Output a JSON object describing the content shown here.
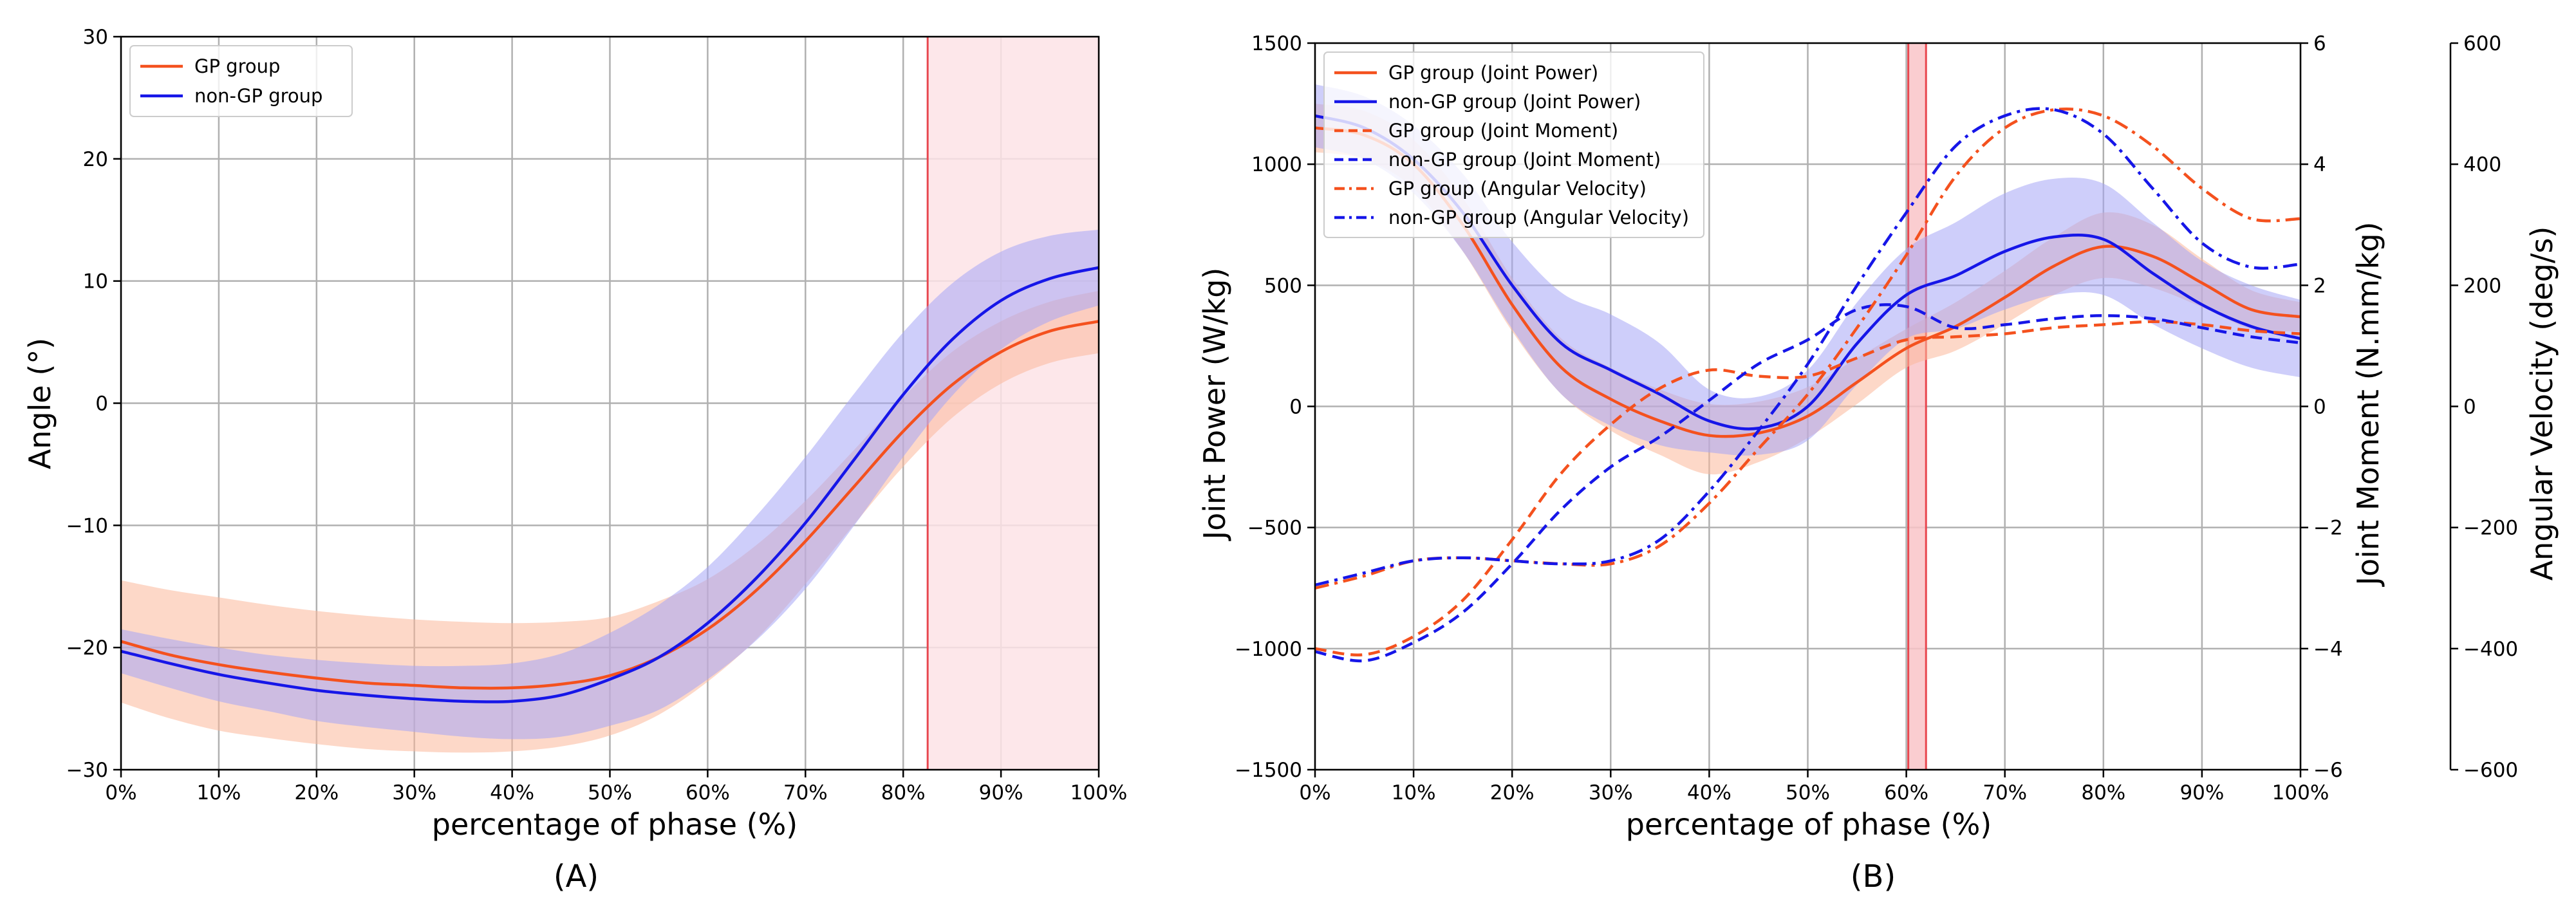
{
  "chart_data": [
    {
      "panel": "(A)",
      "type": "line",
      "xlabel": "percentage of phase (%)",
      "ylabel": "Angle (°)",
      "xlim": [
        0,
        100
      ],
      "ylim": [
        -30,
        30
      ],
      "xticks": [
        "0%",
        "10%",
        "20%",
        "30%",
        "40%",
        "50%",
        "60%",
        "70%",
        "80%",
        "90%",
        "100%"
      ],
      "yticks": [
        "−30",
        "−20",
        "−10",
        "0",
        "10",
        "20",
        "30"
      ],
      "grid": true,
      "legend_position": "top-left",
      "shaded_region": {
        "x_start": 82.5,
        "x_end": 100,
        "color": "#fde3e6",
        "edge_color": "#e8474f"
      },
      "x": [
        0,
        5,
        10,
        15,
        20,
        25,
        30,
        35,
        40,
        45,
        50,
        55,
        60,
        65,
        70,
        75,
        80,
        85,
        90,
        95,
        100
      ],
      "series": [
        {
          "name": "GP group",
          "color": "#f4511e",
          "linestyle": "solid",
          "values": [
            -19.5,
            -20.6,
            -21.4,
            -22.0,
            -22.5,
            -22.9,
            -23.1,
            -23.3,
            -23.3,
            -23.0,
            -22.3,
            -20.8,
            -18.5,
            -15.3,
            -11.3,
            -6.8,
            -2.3,
            1.5,
            4.2,
            5.9,
            6.7
          ],
          "band_upper": [
            -14.5,
            -15.3,
            -15.9,
            -16.5,
            -17.0,
            -17.4,
            -17.7,
            -17.9,
            -18.0,
            -17.9,
            -17.5,
            -16.2,
            -14.4,
            -11.6,
            -8.0,
            -3.8,
            0.5,
            4.2,
            6.7,
            8.3,
            9.2
          ],
          "band_lower": [
            -24.5,
            -25.8,
            -26.8,
            -27.4,
            -27.9,
            -28.3,
            -28.5,
            -28.6,
            -28.5,
            -28.1,
            -27.2,
            -25.5,
            -22.8,
            -19.3,
            -14.8,
            -9.9,
            -5.2,
            -1.2,
            1.6,
            3.3,
            4.1
          ],
          "band_color": "#fbb89a"
        },
        {
          "name": "non-GP group",
          "color": "#1616e8",
          "linestyle": "solid",
          "values": [
            -20.3,
            -21.3,
            -22.2,
            -22.9,
            -23.5,
            -23.9,
            -24.2,
            -24.4,
            -24.4,
            -23.9,
            -22.6,
            -20.8,
            -18.0,
            -14.3,
            -9.8,
            -4.6,
            0.7,
            5.2,
            8.4,
            10.2,
            11.1
          ],
          "band_upper": [
            -18.5,
            -19.3,
            -20.0,
            -20.6,
            -21.0,
            -21.3,
            -21.5,
            -21.5,
            -21.3,
            -20.5,
            -18.8,
            -16.5,
            -13.4,
            -9.2,
            -4.4,
            0.8,
            5.8,
            9.8,
            12.4,
            13.7,
            14.2
          ],
          "band_lower": [
            -22.1,
            -23.3,
            -24.4,
            -25.2,
            -26.0,
            -26.5,
            -26.9,
            -27.3,
            -27.5,
            -27.3,
            -26.4,
            -25.1,
            -22.6,
            -19.4,
            -15.2,
            -10.0,
            -4.4,
            0.6,
            4.4,
            6.7,
            8.0
          ],
          "band_color": "#a5a5f5"
        }
      ]
    },
    {
      "panel": "(B)",
      "type": "line",
      "xlabel": "percentage of phase (%)",
      "ylabel": "Joint Power (W/kg)",
      "ylabel_right": "Joint Moment (N.mm/kg)",
      "ylabel_right2": "Angular Velocity (deg/s)",
      "xlim": [
        0,
        100
      ],
      "ylim": [
        -1500,
        1500
      ],
      "ylim_right": [
        -6,
        6
      ],
      "ylim_right2": [
        -600,
        600
      ],
      "xticks": [
        "0%",
        "10%",
        "20%",
        "30%",
        "40%",
        "50%",
        "60%",
        "70%",
        "80%",
        "90%",
        "100%"
      ],
      "yticks": [
        "−1500",
        "−1000",
        "−500",
        "0",
        "500",
        "1000",
        "1500"
      ],
      "yticks_right": [
        "−6",
        "−4",
        "−2",
        "0",
        "2",
        "4",
        "6"
      ],
      "yticks_right2": [
        "−600",
        "−400",
        "−200",
        "0",
        "200",
        "400",
        "600"
      ],
      "grid": true,
      "legend_position": "top-left",
      "shaded_region": {
        "x_start": 60.2,
        "x_end": 62.0,
        "color": "#f9c4c8",
        "edge_color": "#e8474f"
      },
      "x": [
        0,
        5,
        10,
        15,
        20,
        25,
        30,
        35,
        40,
        45,
        50,
        55,
        60,
        65,
        70,
        75,
        80,
        85,
        90,
        95,
        100
      ],
      "series": [
        {
          "name": "GP group (Joint Power)",
          "axis": "left",
          "color": "#f4511e",
          "linestyle": "solid",
          "values": [
            1150,
            1120,
            1000,
            750,
            420,
            160,
            30,
            -60,
            -120,
            -110,
            -40,
            100,
            240,
            330,
            450,
            580,
            660,
            620,
            510,
            400,
            370
          ],
          "band_upper": [
            1250,
            1220,
            1100,
            860,
            530,
            280,
            160,
            70,
            10,
            20,
            80,
            200,
            320,
            430,
            560,
            700,
            800,
            750,
            610,
            480,
            430
          ],
          "band_lower": [
            1050,
            1020,
            900,
            640,
            310,
            50,
            -100,
            -200,
            -280,
            -230,
            -130,
            10,
            160,
            230,
            340,
            460,
            530,
            490,
            410,
            320,
            310
          ],
          "band_color": "#fbb89a"
        },
        {
          "name": "non-GP group (Joint Power)",
          "axis": "left",
          "color": "#1616e8",
          "linestyle": "solid",
          "values": [
            1200,
            1150,
            1020,
            800,
            500,
            260,
            150,
            50,
            -60,
            -90,
            0,
            260,
            460,
            540,
            640,
            700,
            690,
            550,
            420,
            330,
            280
          ],
          "band_upper": [
            1330,
            1280,
            1160,
            960,
            680,
            470,
            380,
            260,
            70,
            40,
            150,
            430,
            650,
            760,
            880,
            940,
            920,
            760,
            600,
            500,
            440
          ],
          "band_lower": [
            1070,
            1020,
            880,
            640,
            320,
            50,
            -80,
            -160,
            -190,
            -200,
            -140,
            90,
            280,
            320,
            400,
            460,
            460,
            340,
            240,
            160,
            120
          ],
          "band_color": "#a5a5f5"
        },
        {
          "name": "GP group (Joint Moment)",
          "axis": "right",
          "color": "#f4511e",
          "linestyle": "dashed",
          "values": [
            -4.0,
            -4.1,
            -3.8,
            -3.2,
            -2.2,
            -1.1,
            -0.3,
            0.3,
            0.6,
            0.5,
            0.5,
            0.8,
            1.1,
            1.15,
            1.2,
            1.3,
            1.35,
            1.4,
            1.35,
            1.25,
            1.2
          ]
        },
        {
          "name": "non-GP group (Joint Moment)",
          "axis": "right",
          "color": "#1616e8",
          "linestyle": "dashed",
          "values": [
            -4.05,
            -4.2,
            -3.9,
            -3.4,
            -2.6,
            -1.7,
            -1.0,
            -0.5,
            0.1,
            0.7,
            1.1,
            1.6,
            1.65,
            1.3,
            1.35,
            1.45,
            1.5,
            1.45,
            1.3,
            1.15,
            1.05
          ]
        },
        {
          "name": "GP group (Angular Velocity)",
          "axis": "right2",
          "color": "#f4511e",
          "linestyle": "dashdot",
          "values": [
            -300,
            -280,
            -255,
            -250,
            -255,
            -260,
            -260,
            -230,
            -160,
            -70,
            20,
            130,
            250,
            380,
            460,
            490,
            480,
            430,
            360,
            310,
            310
          ]
        },
        {
          "name": "non-GP group (Angular Velocity)",
          "axis": "right2",
          "color": "#1616e8",
          "linestyle": "dashdot",
          "values": [
            -295,
            -275,
            -255,
            -250,
            -255,
            -260,
            -255,
            -220,
            -140,
            -40,
            70,
            200,
            320,
            430,
            480,
            490,
            450,
            360,
            270,
            230,
            235
          ]
        }
      ]
    }
  ]
}
